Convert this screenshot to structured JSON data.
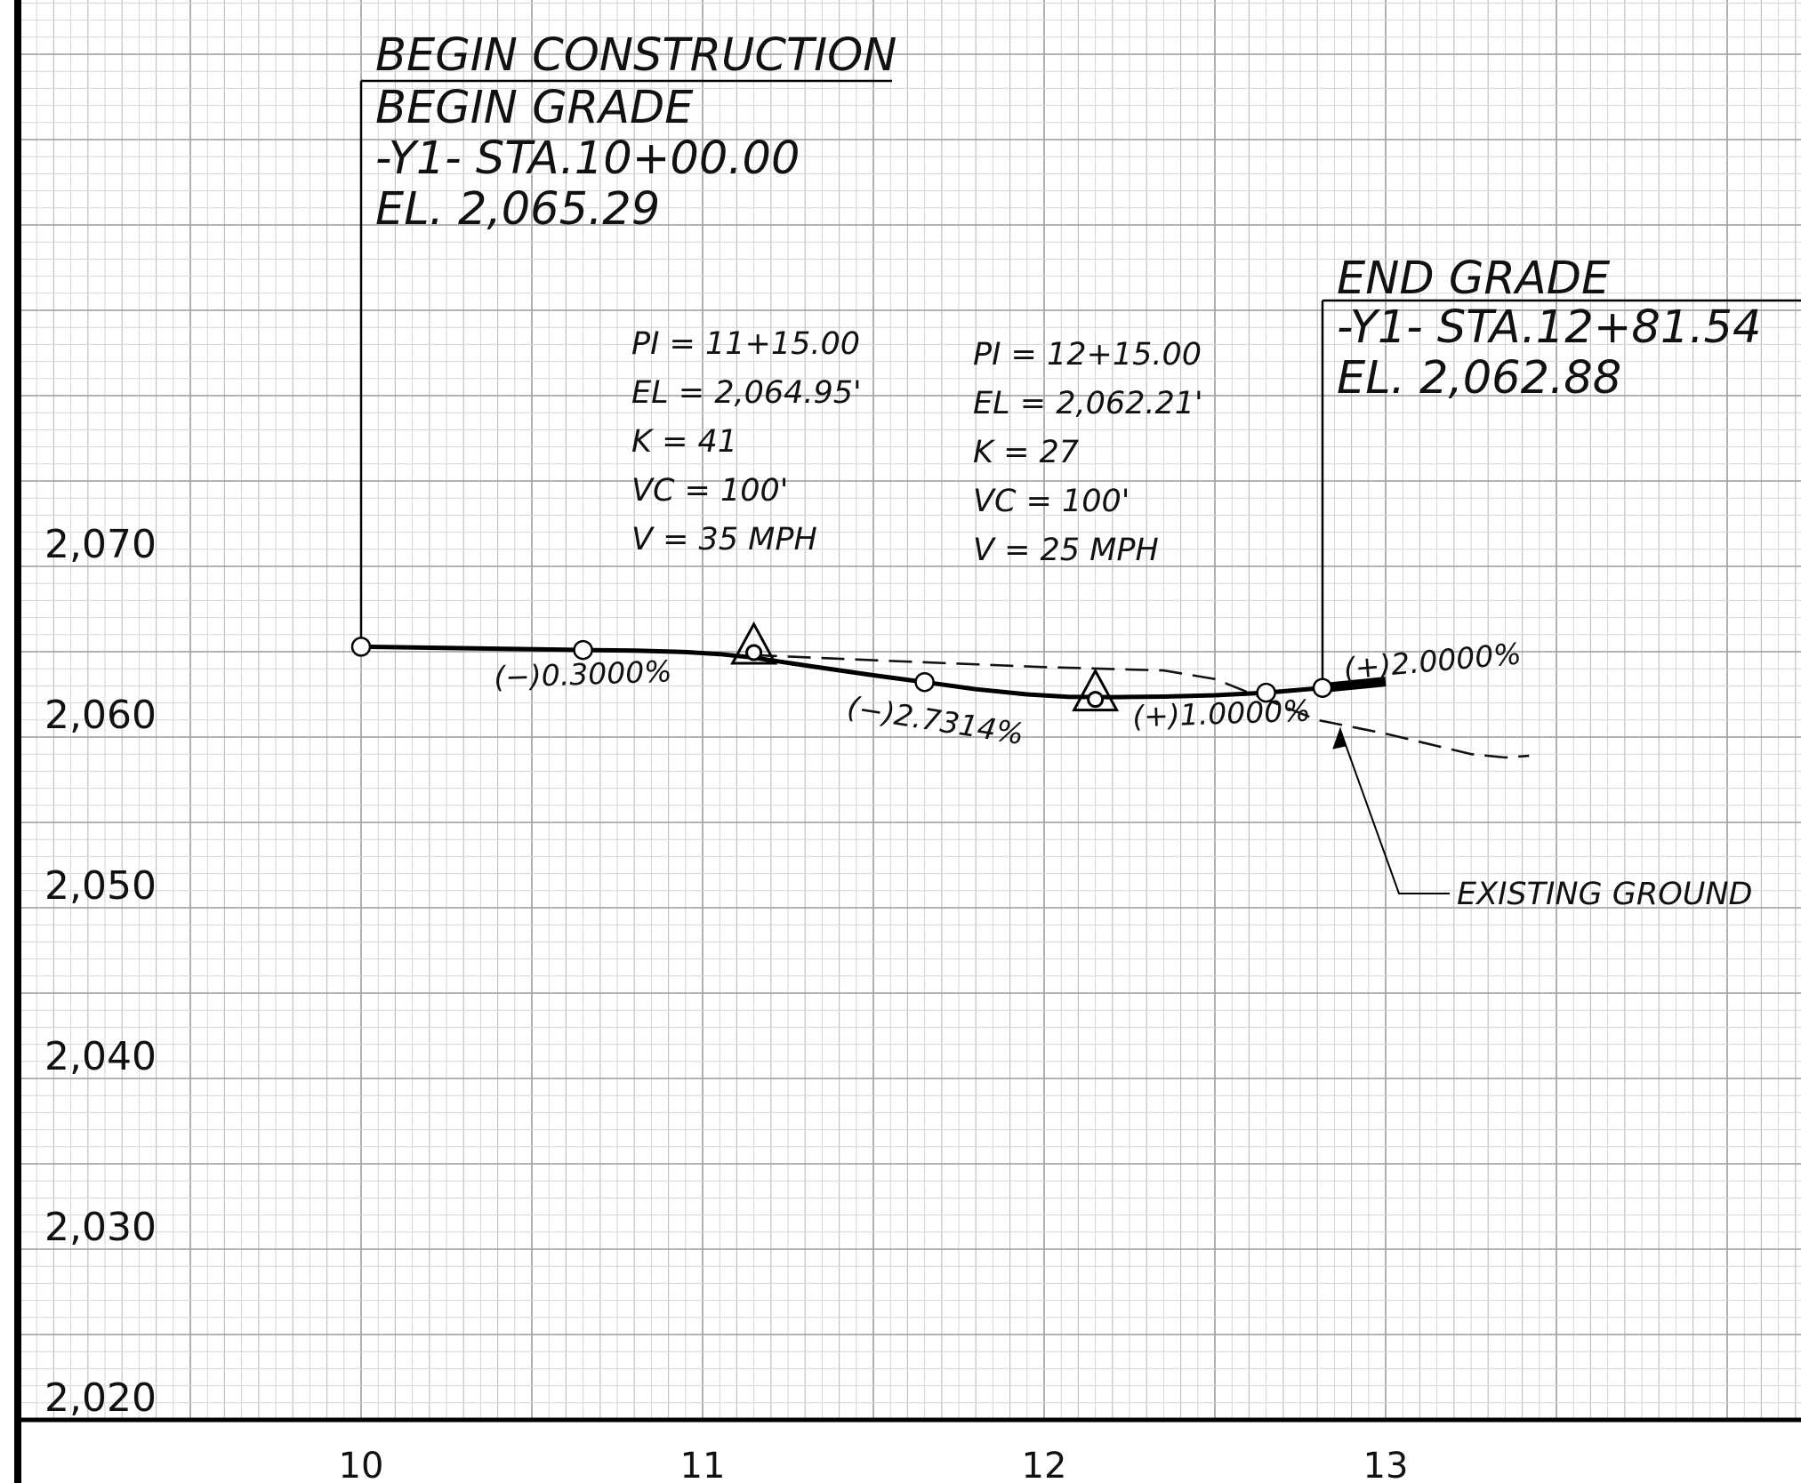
{
  "chart_data": {
    "type": "line",
    "x_ticks": [
      {
        "value": 10,
        "label": "10"
      },
      {
        "value": 11,
        "label": "11"
      },
      {
        "value": 12,
        "label": "12"
      },
      {
        "value": 13,
        "label": "13"
      }
    ],
    "y_ticks": [
      {
        "value": 2070,
        "label": "2,070"
      },
      {
        "value": 2060,
        "label": "2,060"
      },
      {
        "value": 2050,
        "label": "2,050"
      },
      {
        "value": 2040,
        "label": "2,040"
      },
      {
        "value": 2030,
        "label": "2,030"
      },
      {
        "value": 2020,
        "label": "2,020"
      }
    ],
    "xlim": [
      9,
      14.25
    ],
    "ylim": [
      2020,
      2075
    ],
    "grid": true,
    "proposed_grade": {
      "points": [
        [
          10.0,
          2065.29
        ],
        [
          10.65,
          2065.1
        ],
        [
          10.8,
          2065.06
        ],
        [
          10.95,
          2064.98
        ],
        [
          11.05,
          2064.86
        ],
        [
          11.15,
          2064.65
        ],
        [
          11.3,
          2064.2
        ],
        [
          11.5,
          2063.62
        ],
        [
          11.65,
          2063.22
        ],
        [
          11.8,
          2062.8
        ],
        [
          11.95,
          2062.5
        ],
        [
          12.07,
          2062.36
        ],
        [
          12.2,
          2062.34
        ],
        [
          12.35,
          2062.37
        ],
        [
          12.5,
          2062.45
        ],
        [
          12.65,
          2062.6
        ],
        [
          12.815,
          2062.88
        ]
      ],
      "extension": [
        [
          12.815,
          2062.88
        ],
        [
          13.0,
          2063.25
        ]
      ]
    },
    "existing_ground": {
      "points": [
        [
          11.15,
          2064.8
        ],
        [
          11.5,
          2064.5
        ],
        [
          12.0,
          2064.1
        ],
        [
          12.35,
          2063.9
        ],
        [
          12.5,
          2063.4
        ],
        [
          12.65,
          2062.2
        ],
        [
          12.8,
          2061.0
        ],
        [
          13.0,
          2060.2
        ],
        [
          13.25,
          2059.0
        ],
        [
          13.35,
          2058.8
        ],
        [
          13.42,
          2058.9
        ]
      ]
    },
    "control_points": [
      {
        "x": 10.0,
        "y": 2065.29
      },
      {
        "x": 10.65,
        "y": 2065.1
      },
      {
        "x": 11.65,
        "y": 2063.22
      },
      {
        "x": 12.65,
        "y": 2062.6
      },
      {
        "x": 12.815,
        "y": 2062.88
      }
    ],
    "pvi_points": [
      {
        "x": 11.15,
        "y": 2064.95
      },
      {
        "x": 12.15,
        "y": 2062.21
      }
    ],
    "grade_labels": [
      {
        "text": "(−)0.3000%",
        "x": 10.39,
        "y": 2062.9,
        "rotate": -2
      },
      {
        "text": "(−)2.7314%",
        "x": 11.42,
        "y": 2061.2,
        "rotate": 9
      },
      {
        "text": "(+)1.0000%",
        "x": 12.26,
        "y": 2060.6,
        "rotate": -2
      },
      {
        "text": "(+)2.0000%",
        "x": 12.88,
        "y": 2063.4,
        "rotate": -5
      }
    ],
    "begin_callout": {
      "lines": [
        "BEGIN CONSTRUCTION",
        "BEGIN GRADE",
        "-Y1-  STA.10+00.00",
        "EL. 2,065.29"
      ]
    },
    "end_callout": {
      "lines": [
        "END GRADE",
        "-Y1-  STA.12+81.54",
        "EL. 2,062.88"
      ]
    },
    "curve_data": [
      {
        "lines": [
          "PI = 11+15.00",
          "EL = 2,064.95'",
          "K = 41",
          "VC = 100'",
          "V = 35 MPH"
        ]
      },
      {
        "lines": [
          "PI = 12+15.00",
          "EL = 2,062.21'",
          "K = 27",
          "VC = 100'",
          "V = 25 MPH"
        ]
      }
    ],
    "leader": {
      "text": "EXISTING GROUND"
    }
  }
}
